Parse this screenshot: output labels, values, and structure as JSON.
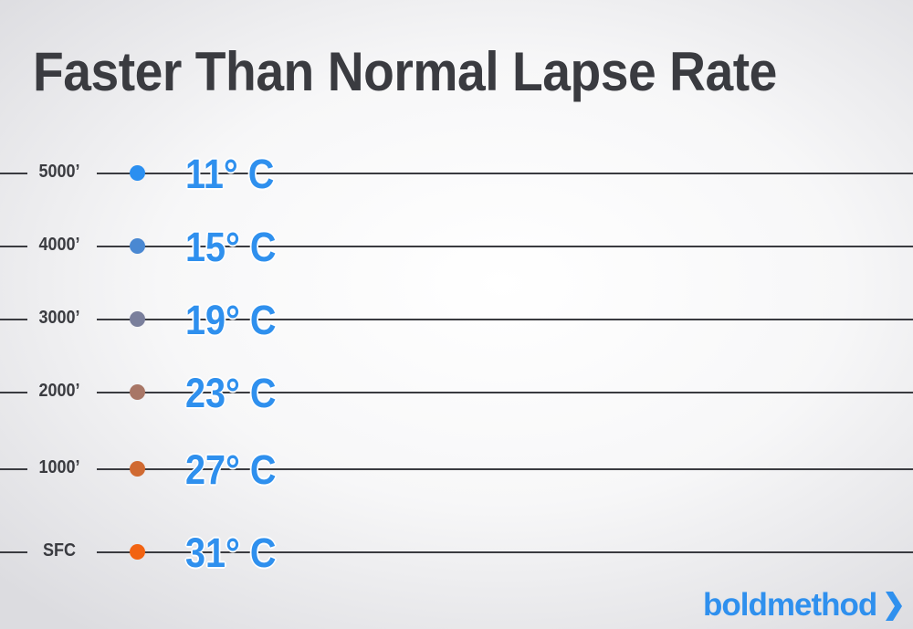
{
  "title": "Faster Than Normal Lapse Rate",
  "rows": [
    {
      "altitude": "5000’",
      "temperature": "11° C",
      "dot_color": "#2b8ff0"
    },
    {
      "altitude": "4000’",
      "temperature": "15° C",
      "dot_color": "#4a88d2"
    },
    {
      "altitude": "3000’",
      "temperature": "19° C",
      "dot_color": "#7a7f9c"
    },
    {
      "altitude": "2000’",
      "temperature": "23° C",
      "dot_color": "#a87666"
    },
    {
      "altitude": "1000’",
      "temperature": "27° C",
      "dot_color": "#d06a32"
    },
    {
      "altitude": "SFC",
      "temperature": "31° C",
      "dot_color": "#f26312"
    }
  ],
  "logo": {
    "text": "boldmethod",
    "icon": "chevron-right-icon",
    "color": "#2f90ee"
  }
}
